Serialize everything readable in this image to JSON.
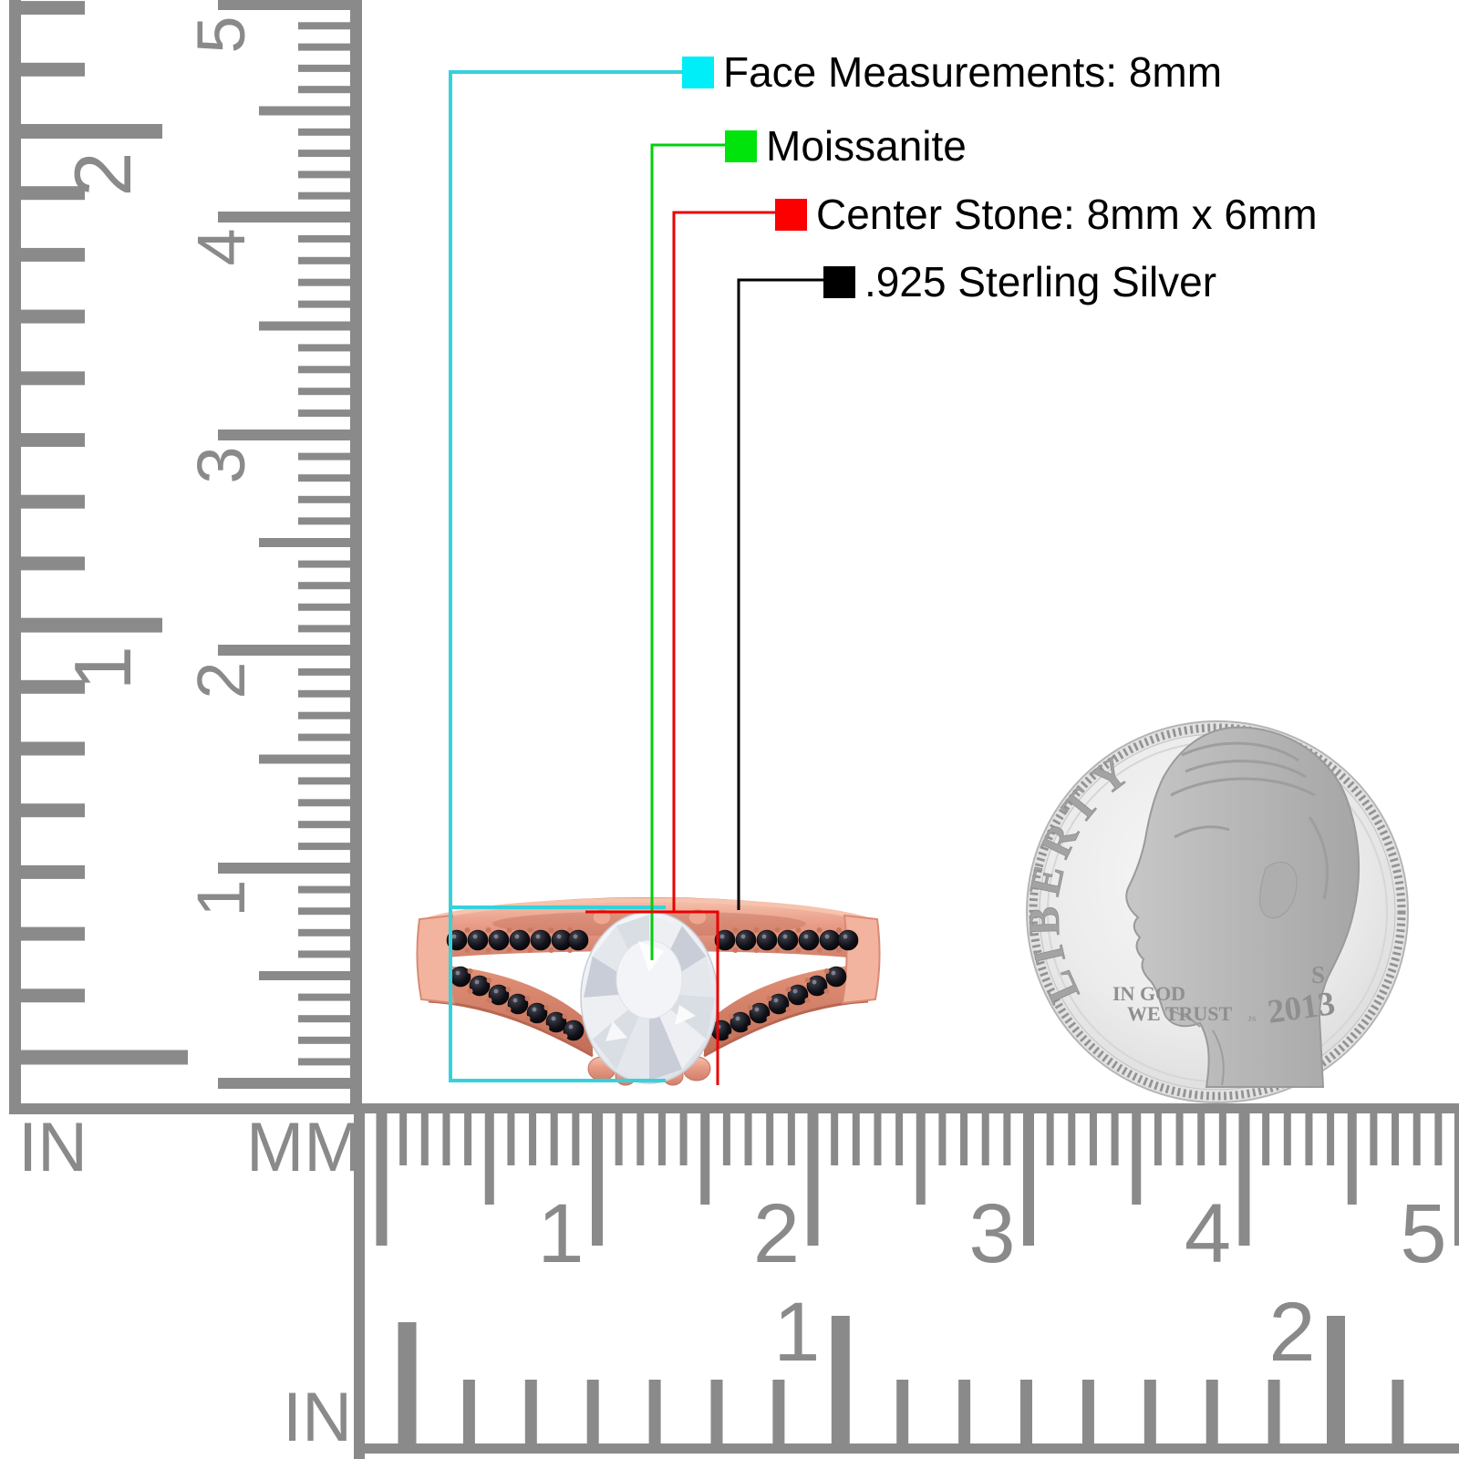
{
  "page": {
    "background": "#ffffff",
    "description": "Ring product measurement diagram with rulers and dime for scale"
  },
  "annotations": {
    "items": [
      {
        "id": "face",
        "label": "Face Measurements: 8mm",
        "swatch_color": "#00eef8",
        "line_color": "#35d2dc"
      },
      {
        "id": "material",
        "label": "Moissanite",
        "swatch_color": "#00e40c",
        "line_color": "#00cf0c"
      },
      {
        "id": "center_stone",
        "label": "Center Stone: 8mm x 6mm",
        "swatch_color": "#fc0000",
        "line_color": "#ea0000"
      },
      {
        "id": "metal",
        "label": ".925 Sterling Silver",
        "swatch_color": "#000000",
        "line_color": "#000000"
      }
    ]
  },
  "rulers": {
    "left_inch": {
      "unit": "IN",
      "labels": [
        "1",
        "2"
      ]
    },
    "left_mm": {
      "unit": "MM",
      "labels": [
        "1",
        "2",
        "3",
        "4",
        "5"
      ]
    },
    "bottom_mm": {
      "labels": [
        "1",
        "2",
        "3",
        "4",
        "5"
      ]
    },
    "bottom_inch": {
      "unit": "IN",
      "labels": [
        "1",
        "2"
      ]
    }
  },
  "coin": {
    "legend": "LIBERTY",
    "motto_line1": "IN GOD",
    "motto_line2": "WE TRUST",
    "mint_mark": "S",
    "year": "2013"
  },
  "colors": {
    "ruler": "#8a8a8a",
    "rose_gold": "#e79a85",
    "rose_gold_light": "#f5bda8",
    "rose_gold_dark": "#c4705c",
    "pave_stone": "#0b0b10",
    "gem_white": "#eef0f4",
    "coin_silver": "#e8e8e8"
  }
}
